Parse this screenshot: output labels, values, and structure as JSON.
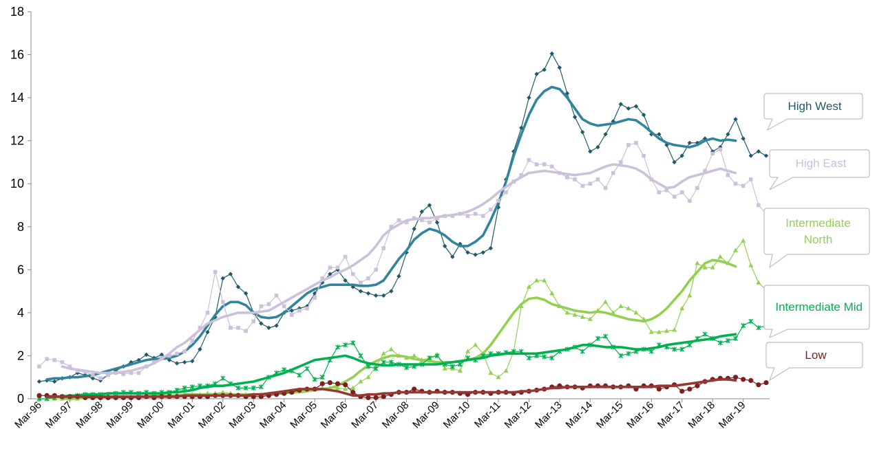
{
  "chart_data": {
    "type": "line",
    "categories": [
      "Mar-96",
      null,
      null,
      null,
      "Mar-97",
      null,
      null,
      null,
      "Mar-98",
      null,
      null,
      null,
      "Mar-99",
      null,
      null,
      null,
      "Mar-00",
      null,
      null,
      null,
      "Mar-01",
      null,
      null,
      null,
      "Mar-02",
      null,
      null,
      null,
      "Mar-03",
      null,
      null,
      null,
      "Mar-04",
      null,
      null,
      null,
      "Mar-05",
      null,
      null,
      null,
      "Mar-06",
      null,
      null,
      null,
      "Mar-07",
      null,
      null,
      null,
      "Mar-08",
      null,
      null,
      null,
      "Mar-09",
      null,
      null,
      null,
      "Mar-10",
      null,
      null,
      null,
      "Mar-11",
      null,
      null,
      null,
      "Mar-12",
      null,
      null,
      null,
      "Mar-13",
      null,
      null,
      null,
      "Mar-14",
      null,
      null,
      null,
      "Mar-15",
      null,
      null,
      null,
      "Mar-16",
      null,
      null,
      null,
      "Mar-17",
      null,
      null,
      null,
      "Mar-18",
      null,
      null,
      null,
      "Mar-19",
      null,
      null,
      null
    ],
    "ylim": [
      0,
      18
    ],
    "yticks": [
      0,
      2,
      4,
      6,
      8,
      10,
      12,
      14,
      16,
      18
    ],
    "series": [
      {
        "name": "High West",
        "color": "#1f5a6b",
        "trend_color": "#31849b",
        "marker": "diamond",
        "values": [
          0.8,
          0.85,
          0.8,
          0.95,
          1.0,
          1.2,
          1.1,
          0.95,
          0.85,
          1.1,
          1.3,
          1.5,
          1.7,
          1.8,
          2.05,
          1.9,
          2.05,
          1.8,
          1.65,
          1.7,
          1.75,
          2.3,
          3.1,
          3.8,
          5.6,
          5.8,
          5.2,
          4.9,
          4.0,
          3.5,
          3.3,
          3.4,
          4.0,
          4.1,
          4.2,
          4.3,
          4.9,
          5.4,
          5.8,
          6.0,
          5.5,
          5.2,
          5.0,
          4.9,
          4.8,
          4.8,
          5.0,
          5.7,
          6.8,
          7.9,
          8.7,
          9.0,
          8.2,
          7.1,
          6.6,
          7.2,
          6.8,
          6.7,
          6.8,
          7.0,
          8.9,
          10.2,
          11.5,
          12.6,
          14.0,
          15.1,
          15.3,
          16.05,
          15.4,
          14.2,
          13.1,
          12.4,
          11.5,
          11.7,
          12.3,
          12.9,
          13.7,
          13.5,
          13.6,
          13.2,
          12.3,
          12.3,
          11.8,
          11.0,
          11.3,
          11.9,
          11.9,
          12.1,
          11.5,
          11.7,
          12.3,
          13.0,
          12.1,
          11.3,
          11.5,
          11.3
        ],
        "trend": [
          null,
          0.9,
          0.95,
          0.95,
          1.0,
          1.0,
          1.05,
          1.1,
          1.2,
          1.3,
          1.4,
          1.5,
          1.6,
          1.7,
          1.8,
          1.85,
          1.85,
          1.9,
          2.0,
          2.2,
          2.5,
          2.9,
          3.4,
          3.9,
          4.3,
          4.5,
          4.5,
          4.35,
          4.0,
          3.8,
          3.75,
          3.8,
          4.0,
          4.3,
          4.6,
          4.9,
          5.1,
          5.2,
          5.3,
          5.3,
          5.3,
          5.3,
          5.25,
          5.25,
          5.3,
          5.5,
          6.0,
          6.5,
          6.9,
          7.4,
          7.7,
          7.9,
          7.8,
          7.6,
          7.3,
          7.1,
          7.1,
          7.3,
          7.6,
          8.3,
          9.1,
          10.1,
          11.3,
          12.3,
          13.2,
          13.9,
          14.3,
          14.5,
          14.4,
          14.0,
          13.5,
          13.0,
          12.8,
          12.7,
          12.75,
          12.8,
          12.9,
          13.0,
          12.95,
          12.7,
          12.4,
          12.1,
          11.9,
          11.8,
          11.75,
          11.7,
          11.8,
          12.0,
          12.1,
          12.0,
          12.05,
          12.0,
          null,
          null,
          null,
          null
        ]
      },
      {
        "name": "High East",
        "color": "#ccc0da",
        "trend_color": "#ccc0da",
        "marker": "square",
        "values": [
          1.5,
          1.85,
          1.8,
          1.7,
          1.5,
          1.3,
          1.25,
          1.1,
          0.95,
          1.1,
          1.2,
          1.15,
          1.2,
          1.2,
          1.5,
          1.7,
          1.9,
          2.0,
          2.1,
          2.2,
          2.7,
          3.3,
          4.0,
          5.9,
          4.5,
          3.3,
          3.3,
          3.15,
          3.6,
          4.3,
          4.4,
          4.8,
          4.3,
          3.9,
          4.1,
          4.2,
          4.7,
          5.6,
          6.1,
          6.1,
          6.6,
          5.8,
          5.4,
          5.6,
          6.0,
          7.0,
          8.0,
          8.3,
          8.2,
          8.4,
          8.3,
          8.2,
          8.4,
          8.5,
          8.5,
          8.6,
          8.5,
          8.6,
          8.5,
          8.8,
          9.2,
          9.6,
          10.1,
          10.4,
          11.1,
          10.9,
          10.9,
          10.8,
          10.5,
          10.3,
          10.2,
          9.9,
          10.0,
          10.2,
          9.8,
          10.5,
          11.0,
          11.8,
          11.9,
          11.3,
          10.2,
          9.6,
          9.7,
          9.4,
          9.6,
          9.2,
          9.8,
          10.6,
          11.4,
          11.6,
          10.4,
          10.0,
          9.9,
          10.2,
          9.0,
          8.6
        ],
        "trend": [
          null,
          null,
          null,
          1.5,
          1.4,
          1.35,
          1.3,
          1.25,
          1.2,
          1.2,
          1.2,
          1.25,
          1.3,
          1.4,
          1.5,
          1.65,
          1.85,
          2.1,
          2.4,
          2.6,
          2.9,
          3.2,
          3.5,
          3.65,
          3.8,
          3.9,
          4.0,
          4.0,
          4.0,
          4.05,
          4.1,
          4.3,
          4.5,
          4.7,
          4.9,
          5.1,
          5.3,
          5.5,
          5.65,
          5.85,
          6.0,
          6.2,
          6.45,
          6.7,
          7.1,
          7.6,
          7.9,
          8.1,
          8.3,
          8.35,
          8.4,
          8.4,
          8.45,
          8.5,
          8.55,
          8.6,
          8.7,
          8.85,
          9.05,
          9.3,
          9.6,
          9.85,
          10.1,
          10.3,
          10.5,
          10.55,
          10.6,
          10.55,
          10.5,
          10.45,
          10.4,
          10.45,
          10.5,
          10.65,
          10.8,
          10.9,
          10.85,
          10.8,
          10.7,
          10.5,
          10.2,
          10.0,
          9.8,
          9.85,
          10.1,
          10.3,
          10.4,
          10.5,
          10.6,
          10.7,
          10.6,
          10.5,
          null,
          null,
          null,
          null
        ]
      },
      {
        "name": "Intermediate North",
        "color": "#92d050",
        "trend_color": "#92d050",
        "marker": "triangle",
        "values": [
          0,
          0,
          0,
          0,
          0,
          0,
          0.05,
          0.05,
          0.05,
          0.05,
          0.1,
          0.1,
          0.1,
          0.1,
          0.1,
          0.15,
          0.15,
          0.15,
          0.2,
          0.2,
          0.2,
          0.2,
          0.25,
          0.25,
          0.3,
          0.25,
          0.2,
          0.2,
          0.2,
          0.2,
          0.2,
          0.25,
          0.25,
          0.3,
          0.35,
          0.4,
          0.45,
          0.5,
          0.5,
          0.5,
          0.45,
          0.5,
          0.8,
          1.0,
          1.5,
          2.1,
          2.3,
          2.0,
          1.9,
          2.0,
          1.8,
          1.9,
          2.05,
          1.4,
          1.4,
          1.3,
          2.2,
          2.5,
          2.1,
          1.2,
          1.0,
          1.3,
          2.2,
          4.3,
          5.2,
          5.5,
          5.5,
          4.9,
          4.3,
          4.0,
          3.9,
          3.8,
          3.7,
          4.1,
          4.5,
          4.0,
          4.3,
          4.2,
          4.0,
          3.7,
          3.1,
          3.1,
          3.15,
          3.2,
          4.2,
          4.8,
          6.3,
          6.1,
          6.1,
          6.6,
          6.3,
          6.9,
          7.35,
          6.2,
          5.4,
          5.05
        ],
        "trend": [
          null,
          null,
          null,
          0,
          0,
          0,
          0.05,
          0.05,
          0.05,
          0.05,
          0.1,
          0.1,
          0.1,
          0.1,
          0.1,
          0.15,
          0.15,
          0.15,
          0.15,
          0.2,
          0.2,
          0.2,
          0.2,
          0.2,
          0.2,
          0.2,
          0.2,
          0.2,
          0.2,
          0.2,
          0.2,
          0.25,
          0.25,
          0.3,
          0.3,
          0.35,
          0.4,
          0.45,
          0.5,
          0.6,
          0.8,
          1.0,
          1.3,
          1.55,
          1.75,
          1.9,
          2.0,
          2.0,
          1.95,
          1.85,
          1.8,
          1.75,
          1.7,
          1.7,
          1.7,
          1.75,
          1.8,
          1.9,
          2.1,
          2.5,
          3.0,
          3.5,
          4.0,
          4.4,
          4.65,
          4.7,
          4.6,
          4.4,
          4.3,
          4.2,
          4.1,
          4.05,
          4.0,
          4.05,
          4.0,
          3.9,
          3.8,
          3.7,
          3.65,
          3.6,
          3.7,
          3.9,
          4.2,
          4.6,
          5.0,
          5.5,
          5.9,
          6.3,
          6.45,
          6.4,
          6.3,
          6.15,
          null,
          null,
          null,
          null
        ]
      },
      {
        "name": "Intermediate Mid",
        "color": "#00b050",
        "trend_color": "#00b050",
        "marker": "star",
        "values": [
          0,
          0,
          0.05,
          0.1,
          0.1,
          0.15,
          0.2,
          0.2,
          0.2,
          0.2,
          0.25,
          0.3,
          0.3,
          0.25,
          0.3,
          0.25,
          0.3,
          0.3,
          0.4,
          0.5,
          0.55,
          0.6,
          0.6,
          0.7,
          0.95,
          0.7,
          0.5,
          0.5,
          0.5,
          0.55,
          1.0,
          1.2,
          1.35,
          1.3,
          1.1,
          1.4,
          0.9,
          1.0,
          1.8,
          2.4,
          2.5,
          2.6,
          2.0,
          1.5,
          1.4,
          1.7,
          1.7,
          1.6,
          1.45,
          1.5,
          1.6,
          1.9,
          2.0,
          1.6,
          1.5,
          1.6,
          1.9,
          1.8,
          2.0,
          2.1,
          2.1,
          2.15,
          2.2,
          2.2,
          1.9,
          2.0,
          1.95,
          1.9,
          2.2,
          2.3,
          2.4,
          2.2,
          2.5,
          2.8,
          2.9,
          2.4,
          2.0,
          2.1,
          2.2,
          2.3,
          2.2,
          2.5,
          2.4,
          2.3,
          2.3,
          2.5,
          2.8,
          3.0,
          2.8,
          2.6,
          2.7,
          2.8,
          3.4,
          3.6,
          3.3,
          3.4
        ],
        "trend": [
          null,
          0.05,
          0.1,
          0.1,
          0.15,
          0.15,
          0.2,
          0.2,
          0.2,
          0.25,
          0.25,
          0.25,
          0.25,
          0.25,
          0.25,
          0.25,
          0.25,
          0.3,
          0.3,
          0.35,
          0.4,
          0.5,
          0.55,
          0.6,
          0.6,
          0.65,
          0.7,
          0.75,
          0.8,
          0.9,
          1.0,
          1.1,
          1.2,
          1.35,
          1.5,
          1.65,
          1.8,
          1.85,
          1.9,
          1.95,
          2.0,
          1.9,
          1.75,
          1.65,
          1.6,
          1.55,
          1.55,
          1.6,
          1.6,
          1.6,
          1.6,
          1.6,
          1.6,
          1.65,
          1.7,
          1.75,
          1.8,
          1.85,
          1.9,
          2.0,
          2.05,
          2.1,
          2.1,
          2.1,
          2.1,
          2.1,
          2.15,
          2.2,
          2.25,
          2.3,
          2.4,
          2.5,
          2.5,
          2.45,
          2.4,
          2.4,
          2.4,
          2.35,
          2.3,
          2.3,
          2.35,
          2.4,
          2.5,
          2.55,
          2.6,
          2.65,
          2.7,
          2.75,
          2.8,
          2.9,
          2.95,
          3.0,
          null,
          null,
          null,
          null
        ]
      },
      {
        "name": "Low",
        "color": "#7b1f1f",
        "trend_color": "#953735",
        "marker": "circle",
        "values": [
          0.15,
          0.15,
          0.15,
          0.1,
          0.1,
          0.1,
          0.05,
          0.05,
          0.05,
          0.05,
          0.05,
          0.05,
          0.05,
          0.05,
          0.1,
          0.05,
          0.1,
          0.1,
          0.1,
          0.1,
          0.1,
          0.1,
          0.1,
          0.15,
          0.15,
          0.15,
          0.15,
          0.1,
          0.1,
          0.1,
          0.15,
          0.2,
          0.25,
          0.3,
          0.4,
          0.45,
          0.45,
          0.7,
          0.75,
          0.7,
          0.65,
          0.3,
          0.1,
          0.05,
          0.05,
          0.1,
          0.2,
          0.3,
          0.3,
          0.45,
          0.35,
          0.3,
          0.35,
          0.3,
          0.3,
          0.25,
          0.2,
          0.3,
          0.3,
          0.25,
          0.3,
          0.3,
          0.25,
          0.3,
          0.35,
          0.4,
          0.45,
          0.55,
          0.6,
          0.55,
          0.55,
          0.5,
          0.6,
          0.6,
          0.6,
          0.55,
          0.55,
          0.6,
          0.45,
          0.6,
          0.6,
          0.45,
          0.55,
          0.65,
          0.35,
          0.45,
          0.6,
          0.8,
          0.9,
          0.95,
          0.95,
          1.0,
          0.9,
          0.85,
          0.65,
          0.75
        ],
        "trend": [
          null,
          0.1,
          0.1,
          0.1,
          0.1,
          0.1,
          0.1,
          0.1,
          0.1,
          0.1,
          0.1,
          0.1,
          0.1,
          0.1,
          0.1,
          0.1,
          0.1,
          0.1,
          0.1,
          0.15,
          0.15,
          0.15,
          0.15,
          0.15,
          0.15,
          0.15,
          0.15,
          0.15,
          0.2,
          0.2,
          0.25,
          0.3,
          0.35,
          0.4,
          0.45,
          0.45,
          0.45,
          0.45,
          0.4,
          0.35,
          0.25,
          0.15,
          0.15,
          0.2,
          0.2,
          0.25,
          0.25,
          0.3,
          0.3,
          0.3,
          0.3,
          0.3,
          0.3,
          0.3,
          0.3,
          0.3,
          0.3,
          0.3,
          0.3,
          0.3,
          0.3,
          0.3,
          0.3,
          0.35,
          0.35,
          0.4,
          0.45,
          0.5,
          0.5,
          0.55,
          0.55,
          0.55,
          0.55,
          0.55,
          0.55,
          0.55,
          0.55,
          0.55,
          0.55,
          0.55,
          0.55,
          0.6,
          0.6,
          0.6,
          0.65,
          0.7,
          0.75,
          0.8,
          0.85,
          0.9,
          0.9,
          0.85,
          null,
          null,
          null,
          null
        ]
      }
    ]
  }
}
